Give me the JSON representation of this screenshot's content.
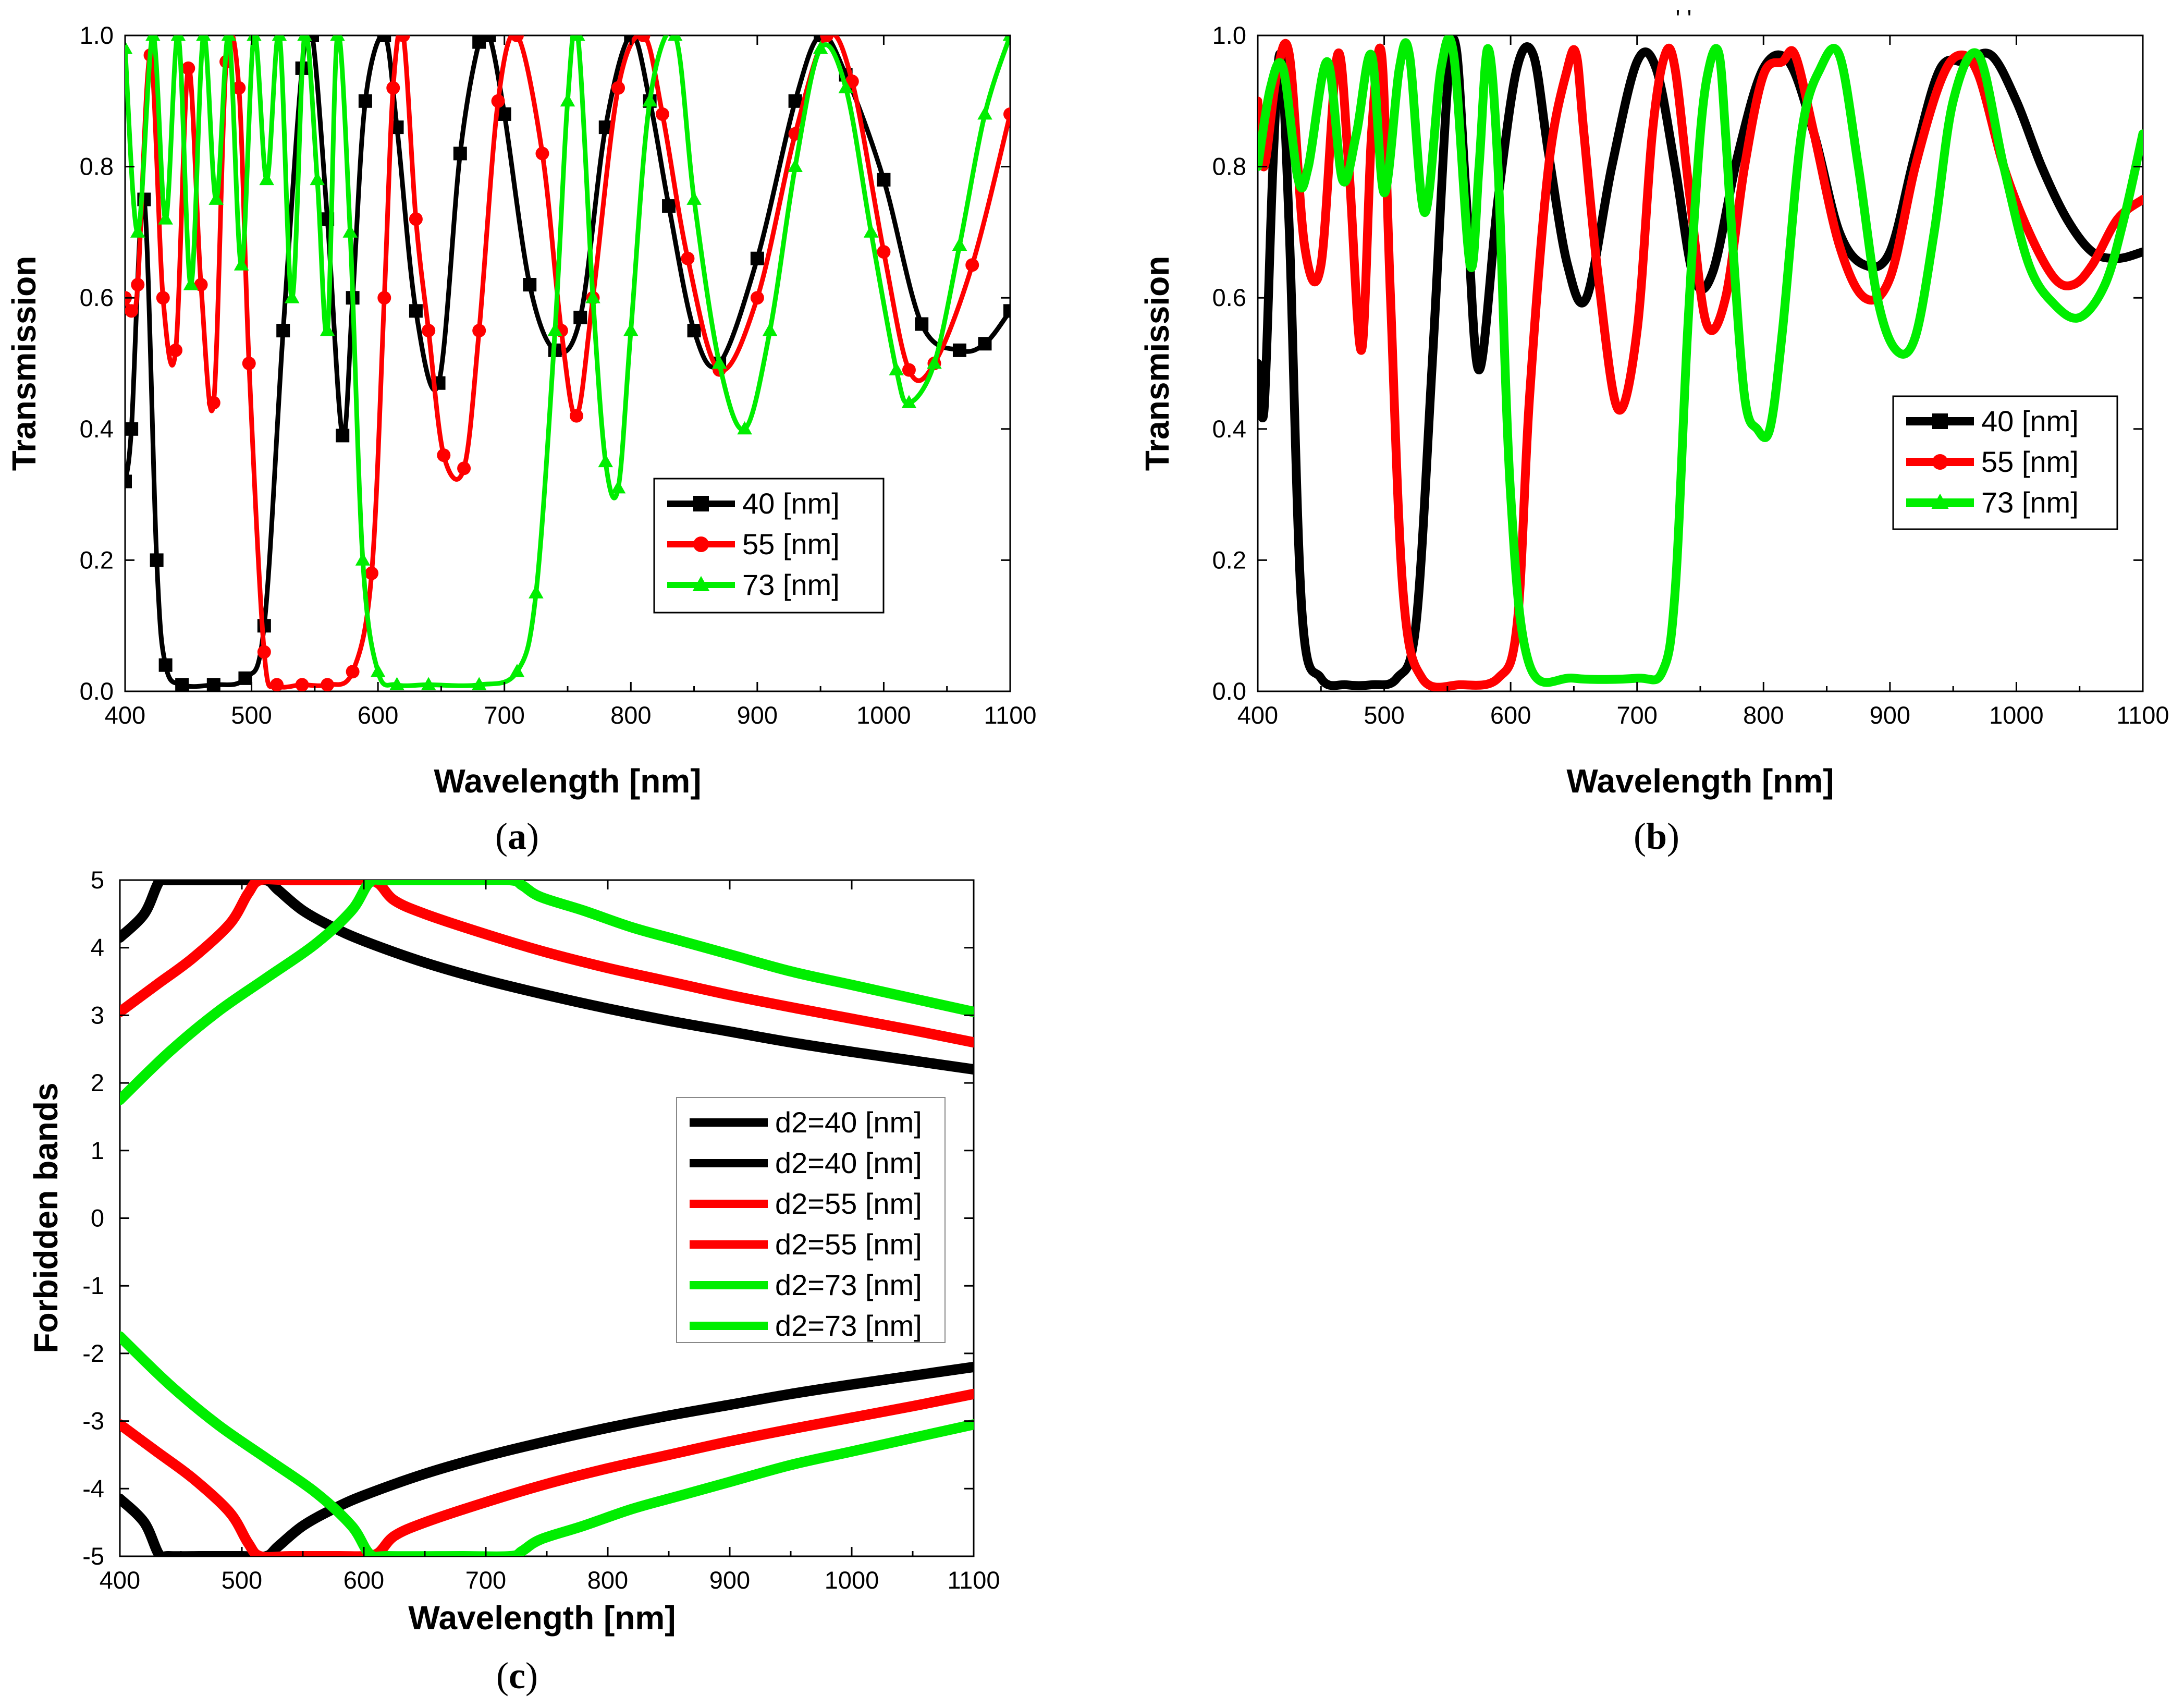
{
  "captions": {
    "a": {
      "open": "(",
      "letter": "a",
      "close": ")"
    },
    "b": {
      "open": "(",
      "letter": "b",
      "close": ")"
    },
    "c": {
      "open": "(",
      "letter": "c",
      "close": ")"
    }
  },
  "colors": {
    "black": "#000000",
    "red": "#ff0000",
    "green": "#00ee00"
  },
  "chart_data": [
    {
      "id": "a",
      "type": "line",
      "marker_style": "markers",
      "xlabel": "Wavelength [nm]",
      "ylabel": "Transmission",
      "xlim": [
        400,
        1100
      ],
      "ylim": [
        0,
        1
      ],
      "xticks": [
        400,
        500,
        600,
        700,
        800,
        900,
        1000,
        1100
      ],
      "yticks": [
        0.0,
        0.2,
        0.4,
        0.6,
        0.8,
        1.0
      ],
      "ytick_labels": [
        "0.0",
        "0.2",
        "0.4",
        "0.6",
        "0.8",
        "1.0"
      ],
      "legend_position": "center-right",
      "series": [
        {
          "name": "40 [nm]",
          "color": "black",
          "marker": "square",
          "x": [
            400,
            405,
            415,
            425,
            432,
            445,
            470,
            495,
            510,
            525,
            540,
            548,
            560,
            572,
            580,
            590,
            605,
            615,
            630,
            648,
            665,
            680,
            688,
            700,
            720,
            740,
            760,
            780,
            800,
            815,
            830,
            850,
            870,
            900,
            930,
            950,
            970,
            1000,
            1030,
            1060,
            1080,
            1100
          ],
          "y": [
            0.32,
            0.4,
            0.75,
            0.2,
            0.04,
            0.01,
            0.01,
            0.02,
            0.1,
            0.55,
            0.95,
            1.0,
            0.72,
            0.39,
            0.6,
            0.9,
            1.0,
            0.86,
            0.58,
            0.47,
            0.82,
            0.99,
            1.0,
            0.88,
            0.62,
            0.52,
            0.57,
            0.86,
            1.0,
            0.9,
            0.74,
            0.55,
            0.5,
            0.66,
            0.9,
            1.0,
            0.94,
            0.78,
            0.56,
            0.52,
            0.53,
            0.58
          ]
        },
        {
          "name": "55 [nm]",
          "color": "red",
          "marker": "circle",
          "x": [
            400,
            405,
            410,
            420,
            430,
            440,
            450,
            460,
            470,
            480,
            490,
            498,
            510,
            520,
            540,
            560,
            580,
            595,
            605,
            612,
            620,
            630,
            640,
            652,
            668,
            680,
            695,
            710,
            730,
            745,
            757,
            770,
            790,
            810,
            825,
            845,
            870,
            900,
            930,
            955,
            975,
            1000,
            1020,
            1040,
            1070,
            1100
          ],
          "y": [
            0.6,
            0.58,
            0.62,
            0.97,
            0.6,
            0.52,
            0.95,
            0.62,
            0.44,
            0.96,
            0.92,
            0.5,
            0.06,
            0.01,
            0.01,
            0.01,
            0.03,
            0.18,
            0.6,
            0.92,
            1.0,
            0.72,
            0.55,
            0.36,
            0.34,
            0.55,
            0.9,
            1.0,
            0.82,
            0.55,
            0.42,
            0.6,
            0.92,
            1.0,
            0.88,
            0.66,
            0.49,
            0.6,
            0.85,
            1.0,
            0.93,
            0.67,
            0.49,
            0.5,
            0.65,
            0.88
          ]
        },
        {
          "name": "73 [nm]",
          "color": "green",
          "marker": "triangle",
          "x": [
            400,
            410,
            422,
            432,
            442,
            452,
            462,
            472,
            482,
            492,
            502,
            512,
            522,
            532,
            542,
            552,
            560,
            568,
            578,
            588,
            600,
            615,
            640,
            680,
            710,
            725,
            740,
            750,
            758,
            770,
            780,
            790,
            800,
            815,
            835,
            850,
            870,
            890,
            910,
            930,
            950,
            970,
            990,
            1010,
            1020,
            1040,
            1060,
            1080,
            1100
          ],
          "y": [
            0.98,
            0.7,
            1.0,
            0.72,
            1.0,
            0.62,
            1.0,
            0.75,
            1.0,
            0.65,
            1.0,
            0.78,
            1.0,
            0.6,
            1.0,
            0.78,
            0.55,
            1.0,
            0.7,
            0.2,
            0.03,
            0.01,
            0.01,
            0.01,
            0.03,
            0.15,
            0.55,
            0.9,
            1.0,
            0.6,
            0.35,
            0.31,
            0.55,
            0.9,
            1.0,
            0.75,
            0.5,
            0.4,
            0.55,
            0.8,
            0.98,
            0.92,
            0.7,
            0.49,
            0.44,
            0.5,
            0.68,
            0.88,
            1.0
          ]
        }
      ]
    },
    {
      "id": "b",
      "type": "line",
      "marker_style": "lines",
      "xlabel": "Wavelength [nm]",
      "ylabel": "Transmission",
      "xlim": [
        400,
        1100
      ],
      "ylim": [
        0,
        1
      ],
      "xticks": [
        400,
        500,
        600,
        700,
        800,
        900,
        1000,
        1100
      ],
      "yticks": [
        0.0,
        0.2,
        0.4,
        0.6,
        0.8,
        1.0
      ],
      "ytick_labels": [
        "0.0",
        "0.2",
        "0.4",
        "0.6",
        "0.8",
        "1.0"
      ],
      "top_mark": "' '",
      "legend_position": "right",
      "series": [
        {
          "name": "40 [nm]",
          "color": "black",
          "marker": "square",
          "x": [
            400,
            405,
            412,
            418,
            425,
            435,
            450,
            470,
            490,
            510,
            525,
            538,
            550,
            557,
            565,
            575,
            590,
            605,
            618,
            630,
            645,
            660,
            680,
            700,
            715,
            730,
            745,
            760,
            780,
            800,
            820,
            840,
            860,
            880,
            900,
            920,
            940,
            960,
            980,
            1000,
            1020,
            1040,
            1060,
            1080,
            1100
          ],
          "y": [
            0.5,
            0.43,
            0.8,
            0.97,
            0.7,
            0.12,
            0.02,
            0.01,
            0.01,
            0.02,
            0.1,
            0.5,
            0.92,
            0.98,
            0.75,
            0.49,
            0.75,
            0.95,
            0.97,
            0.82,
            0.65,
            0.6,
            0.8,
            0.96,
            0.95,
            0.8,
            0.63,
            0.64,
            0.82,
            0.95,
            0.96,
            0.85,
            0.7,
            0.65,
            0.67,
            0.82,
            0.95,
            0.96,
            0.97,
            0.9,
            0.8,
            0.72,
            0.67,
            0.66,
            0.67
          ]
        },
        {
          "name": "55 [nm]",
          "color": "red",
          "marker": "circle",
          "x": [
            400,
            405,
            415,
            425,
            437,
            450,
            463,
            472,
            482,
            490,
            498,
            505,
            515,
            530,
            560,
            590,
            605,
            615,
            630,
            645,
            652,
            658,
            670,
            685,
            700,
            712,
            722,
            730,
            742,
            755,
            770,
            785,
            800,
            815,
            825,
            840,
            860,
            880,
            900,
            920,
            940,
            955,
            970,
            990,
            1010,
            1030,
            1045,
            1060,
            1080,
            1100
          ],
          "y": [
            0.9,
            0.8,
            0.94,
            0.97,
            0.68,
            0.65,
            0.97,
            0.8,
            0.52,
            0.85,
            0.97,
            0.6,
            0.15,
            0.02,
            0.01,
            0.02,
            0.1,
            0.45,
            0.8,
            0.95,
            0.97,
            0.85,
            0.62,
            0.43,
            0.55,
            0.85,
            0.97,
            0.95,
            0.75,
            0.56,
            0.6,
            0.8,
            0.94,
            0.96,
            0.97,
            0.85,
            0.68,
            0.6,
            0.63,
            0.8,
            0.93,
            0.97,
            0.94,
            0.8,
            0.7,
            0.63,
            0.62,
            0.65,
            0.72,
            0.75
          ]
        },
        {
          "name": "73 [nm]",
          "color": "green",
          "marker": "triangle",
          "x": [
            400,
            410,
            420,
            432,
            440,
            455,
            467,
            478,
            490,
            500,
            512,
            520,
            532,
            545,
            555,
            568,
            575,
            582,
            590,
            600,
            615,
            650,
            700,
            720,
            730,
            740,
            750,
            758,
            765,
            770,
            775,
            785,
            795,
            805,
            815,
            830,
            845,
            860,
            875,
            890,
            905,
            920,
            935,
            950,
            970,
            990,
            1010,
            1030,
            1050,
            1070,
            1085,
            1100
          ],
          "y": [
            0.8,
            0.92,
            0.95,
            0.78,
            0.8,
            0.96,
            0.78,
            0.85,
            0.97,
            0.76,
            0.95,
            0.97,
            0.73,
            0.95,
            0.97,
            0.65,
            0.8,
            0.98,
            0.8,
            0.3,
            0.04,
            0.02,
            0.02,
            0.03,
            0.15,
            0.55,
            0.85,
            0.96,
            0.97,
            0.85,
            0.7,
            0.45,
            0.4,
            0.4,
            0.55,
            0.85,
            0.95,
            0.97,
            0.8,
            0.6,
            0.52,
            0.54,
            0.7,
            0.9,
            0.97,
            0.8,
            0.65,
            0.59,
            0.57,
            0.62,
            0.72,
            0.85
          ]
        }
      ]
    },
    {
      "id": "c",
      "type": "line",
      "marker_style": "lines",
      "xlabel": "Wavelength [nm]",
      "ylabel": "Forbidden bands",
      "xlim": [
        400,
        1100
      ],
      "ylim": [
        -5,
        5
      ],
      "xticks": [
        400,
        500,
        600,
        700,
        800,
        900,
        1000,
        1100
      ],
      "yticks": [
        -5,
        -4,
        -3,
        -2,
        -1,
        0,
        1,
        2,
        3,
        4,
        5
      ],
      "ytick_labels": [
        "-5",
        "-4",
        "-3",
        "-2",
        "-1",
        "0",
        "1",
        "2",
        "3",
        "4",
        "5"
      ],
      "legend_position": "center-right",
      "series": [
        {
          "name": "d2=40 [nm]",
          "color": "black",
          "x": [
            400,
            420,
            432,
            440,
            470,
            500,
            520,
            530,
            550,
            575,
            600,
            650,
            700,
            750,
            800,
            850,
            900,
            950,
            1000,
            1050,
            1100
          ],
          "y": [
            4.15,
            4.5,
            4.97,
            5.0,
            5.0,
            5.0,
            5.0,
            4.85,
            4.55,
            4.3,
            4.1,
            3.78,
            3.52,
            3.3,
            3.1,
            2.92,
            2.76,
            2.6,
            2.46,
            2.33,
            2.2
          ]
        },
        {
          "name": "d2=40 [nm]",
          "color": "black",
          "x": [
            400,
            420,
            432,
            440,
            470,
            500,
            520,
            530,
            550,
            575,
            600,
            650,
            700,
            750,
            800,
            850,
            900,
            950,
            1000,
            1050,
            1100
          ],
          "y": [
            -4.15,
            -4.5,
            -4.97,
            -5.0,
            -5.0,
            -5.0,
            -5.0,
            -4.85,
            -4.55,
            -4.3,
            -4.1,
            -3.78,
            -3.52,
            -3.3,
            -3.1,
            -2.92,
            -2.76,
            -2.6,
            -2.46,
            -2.33,
            -2.2
          ]
        },
        {
          "name": "d2=55 [nm]",
          "color": "red",
          "x": [
            400,
            430,
            460,
            490,
            505,
            515,
            540,
            580,
            600,
            612,
            625,
            650,
            700,
            750,
            800,
            850,
            900,
            950,
            1000,
            1050,
            1100
          ],
          "y": [
            3.05,
            3.45,
            3.85,
            4.35,
            4.8,
            5.0,
            5.0,
            5.0,
            5.0,
            4.95,
            4.7,
            4.5,
            4.2,
            3.93,
            3.7,
            3.5,
            3.3,
            3.12,
            2.95,
            2.78,
            2.6
          ]
        },
        {
          "name": "d2=55 [nm]",
          "color": "red",
          "x": [
            400,
            430,
            460,
            490,
            505,
            515,
            540,
            580,
            600,
            612,
            625,
            650,
            700,
            750,
            800,
            850,
            900,
            950,
            1000,
            1050,
            1100
          ],
          "y": [
            -3.05,
            -3.45,
            -3.85,
            -4.35,
            -4.8,
            -5.0,
            -5.0,
            -5.0,
            -5.0,
            -4.95,
            -4.7,
            -4.5,
            -4.2,
            -3.93,
            -3.7,
            -3.5,
            -3.3,
            -3.12,
            -2.95,
            -2.78,
            -2.6
          ]
        },
        {
          "name": "d2=73 [nm]",
          "color": "green",
          "x": [
            400,
            440,
            480,
            520,
            560,
            590,
            605,
            620,
            680,
            720,
            730,
            745,
            780,
            820,
            860,
            900,
            950,
            1000,
            1050,
            1100
          ],
          "y": [
            1.75,
            2.45,
            3.05,
            3.55,
            4.05,
            4.55,
            4.97,
            5.0,
            5.0,
            5.0,
            4.92,
            4.75,
            4.55,
            4.3,
            4.1,
            3.9,
            3.65,
            3.45,
            3.25,
            3.05
          ]
        },
        {
          "name": "d2=73 [nm]",
          "color": "green",
          "x": [
            400,
            440,
            480,
            520,
            560,
            590,
            605,
            620,
            680,
            720,
            730,
            745,
            780,
            820,
            860,
            900,
            950,
            1000,
            1050,
            1100
          ],
          "y": [
            -1.75,
            -2.45,
            -3.05,
            -3.55,
            -4.05,
            -4.55,
            -4.97,
            -5.0,
            -5.0,
            -5.0,
            -4.92,
            -4.75,
            -4.55,
            -4.3,
            -4.1,
            -3.9,
            -3.65,
            -3.45,
            -3.25,
            -3.05
          ]
        }
      ]
    }
  ]
}
